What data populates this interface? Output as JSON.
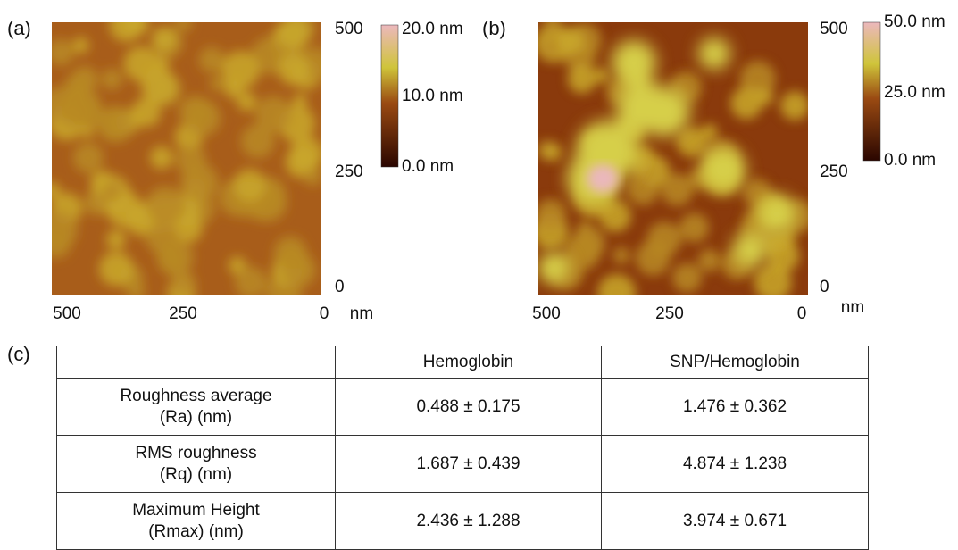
{
  "panels": [
    {
      "label": "(a)",
      "y_axis_labels": [
        "500",
        "250",
        "0"
      ],
      "x_axis_labels": [
        "500",
        "250",
        "0"
      ],
      "x_unit": "nm",
      "colorbar_labels": [
        "20.0 nm",
        "10.0 nm",
        "0.0 nm"
      ]
    },
    {
      "label": "(b)",
      "y_axis_labels": [
        "500",
        "250",
        "0"
      ],
      "x_axis_labels": [
        "500",
        "250",
        "0"
      ],
      "x_unit": "nm",
      "colorbar_labels": [
        "50.0 nm",
        "25.0 nm",
        "0.0 nm"
      ]
    }
  ],
  "table": {
    "label": "(c)",
    "header": [
      "Hemoglobin",
      "SNP/Hemoglobin"
    ],
    "rows": [
      {
        "label": [
          "Roughness average",
          "(Ra) (nm)"
        ],
        "cells": [
          "0.488 ± 0.175",
          "1.476 ± 0.362"
        ]
      },
      {
        "label": [
          "RMS roughness",
          "(Rq) (nm)"
        ],
        "cells": [
          "1.687 ± 0.439",
          "4.874 ± 1.238"
        ]
      },
      {
        "label": [
          "Maximum Height",
          "(Rmax) (nm)"
        ],
        "cells": [
          "2.436 ± 1.288",
          "3.974 ± 0.671"
        ]
      }
    ]
  }
}
